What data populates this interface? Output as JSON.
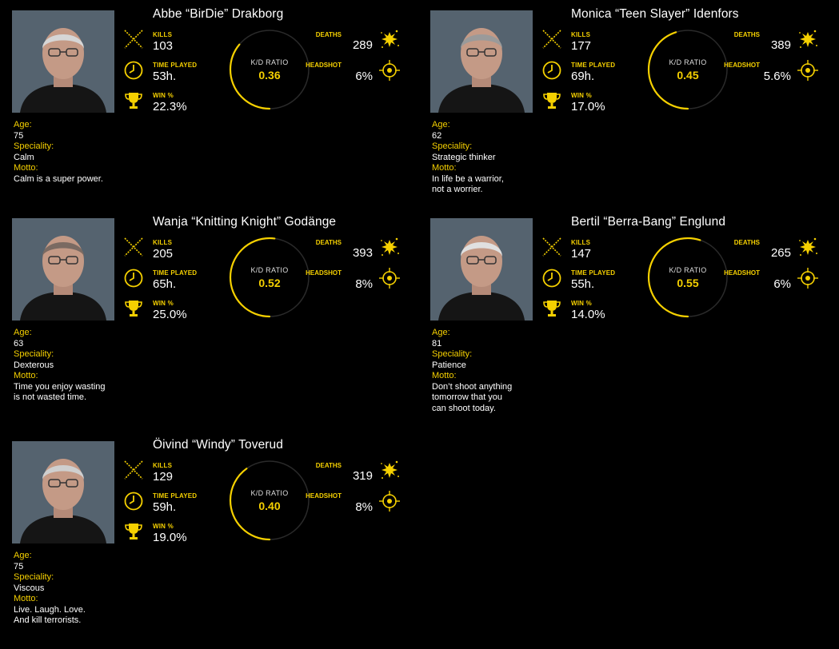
{
  "labels": {
    "kills": "KILLS",
    "time_played": "TIME PLAYED",
    "win": "WIN %",
    "deaths": "DEATHS",
    "headshot": "HEADSHOT",
    "kd_ratio": "K/D RATIO",
    "age": "Age:",
    "speciality": "Speciality:",
    "motto": "Motto:"
  },
  "colors": {
    "accent": "#f5d000",
    "ring_track": "#2a2a2a",
    "background": "#000000"
  },
  "icons": {
    "kills": "crossed-swords-icon",
    "time": "clock-icon",
    "win": "trophy-icon",
    "deaths": "splat-icon",
    "headshot": "crosshair-icon"
  },
  "players": [
    {
      "name": "Abbe “BirDie” Drakborg",
      "kills": "103",
      "time_played": "53h.",
      "win": "22.3%",
      "deaths": "289",
      "headshot": "6%",
      "kd": "0.36",
      "kd_fraction": 0.36,
      "age": "75",
      "speciality": "Calm",
      "motto": "Calm is a super power."
    },
    {
      "name": "Monica “Teen Slayer” Idenfors",
      "kills": "177",
      "time_played": "69h.",
      "win": "17.0%",
      "deaths": "389",
      "headshot": "5.6%",
      "kd": "0.45",
      "kd_fraction": 0.45,
      "age": "62",
      "speciality": "Strategic thinker",
      "motto": "In life be a warrior,\nnot a worrier."
    },
    {
      "name": "Wanja “Knitting Knight” Godänge",
      "kills": "205",
      "time_played": "65h.",
      "win": "25.0%",
      "deaths": "393",
      "headshot": "8%",
      "kd": "0.52",
      "kd_fraction": 0.52,
      "age": "63",
      "speciality": "Dexterous",
      "motto": "Time you enjoy wasting\nis not wasted time."
    },
    {
      "name": "Bertil “Berra-Bang” Englund",
      "kills": "147",
      "time_played": "55h.",
      "win": "14.0%",
      "deaths": "265",
      "headshot": "6%",
      "kd": "0.55",
      "kd_fraction": 0.55,
      "age": "81",
      "speciality": "Patience",
      "motto": "Don’t shoot anything\ntomorrow that you\ncan shoot today."
    },
    {
      "name": "Öivind “Windy” Toverud",
      "kills": "129",
      "time_played": "59h.",
      "win": "19.0%",
      "deaths": "319",
      "headshot": "8%",
      "kd": "0.40",
      "kd_fraction": 0.4,
      "age": "75",
      "speciality": "Viscous",
      "motto": "Live. Laugh. Love.\nAnd kill terrorists."
    }
  ]
}
